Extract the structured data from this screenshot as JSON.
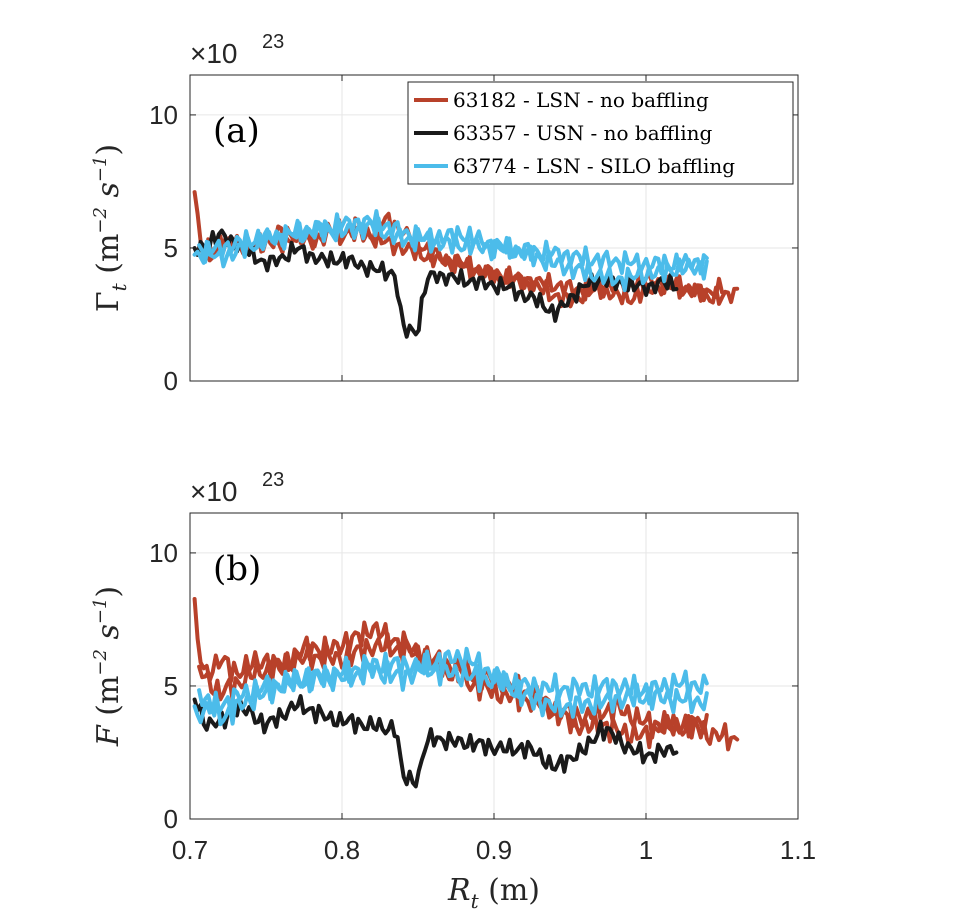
{
  "chart_data": [
    {
      "type": "line",
      "panel_label": "(a)",
      "multiplier": "×10",
      "multiplier_exp": "23",
      "ylabel": "Γt (m−2 s−1)",
      "ylabel_parts": {
        "sym": "Γ",
        "sub": "t",
        "rest": " (m",
        "exp1": "−2",
        "mid": " s",
        "exp2": "−1",
        "end": ")"
      },
      "xlim": [
        0.7,
        1.1
      ],
      "ylim": [
        0,
        11.5
      ],
      "yticks": [
        0,
        5,
        10
      ],
      "yticklabels": [
        "0",
        "5",
        "10"
      ],
      "grid": true,
      "legend_position": "top-right",
      "legend": [
        "63182 - LSN - no baffling",
        "63357 - USN - no baffling",
        "63774 - LSN - SILO baffling"
      ],
      "series": [
        {
          "name": "63182 - LSN - no baffling",
          "color": "#b8412a",
          "passes": [
            {
              "x": [
                0.703,
                0.706,
                0.71,
                0.72,
                0.73,
                0.74,
                0.75,
                0.76,
                0.77,
                0.78,
                0.79,
                0.8,
                0.81,
                0.82,
                0.83,
                0.84,
                0.85,
                0.86,
                0.87,
                0.88,
                0.89,
                0.9,
                0.91,
                0.92,
                0.93,
                0.94,
                0.95,
                0.96,
                0.97,
                0.98,
                0.99,
                1.0,
                1.01,
                1.02,
                1.03,
                1.04,
                1.05,
                1.06
              ],
              "y": [
                7.1,
                5.5,
                4.6,
                5.0,
                5.3,
                4.9,
                5.4,
                5.0,
                5.6,
                5.2,
                5.8,
                5.4,
                5.9,
                5.5,
                6.1,
                5.6,
                5.2,
                4.8,
                4.5,
                4.3,
                4.1,
                3.9,
                3.8,
                3.7,
                3.5,
                3.2,
                3.0,
                3.3,
                3.5,
                3.2,
                3.1,
                3.4,
                3.6,
                3.5,
                3.4,
                3.2,
                3.1,
                3.4
              ]
            },
            {
              "x": [
                0.706,
                0.72,
                0.74,
                0.76,
                0.78,
                0.8,
                0.82,
                0.84,
                0.86,
                0.88,
                0.9,
                0.92,
                0.94,
                0.96,
                0.98,
                1.0,
                1.02,
                1.04,
                1.05
              ],
              "y": [
                4.8,
                5.2,
                5.0,
                5.6,
                5.3,
                5.7,
                5.4,
                5.0,
                4.6,
                4.4,
                4.0,
                3.8,
                3.6,
                3.4,
                3.6,
                3.8,
                3.6,
                3.3,
                3.5
              ]
            }
          ],
          "amp": 0.45
        },
        {
          "name": "63357 - USN - no baffling",
          "color": "#1a1a1a",
          "passes": [
            {
              "x": [
                0.703,
                0.71,
                0.72,
                0.73,
                0.74,
                0.75,
                0.76,
                0.77,
                0.78,
                0.79,
                0.8,
                0.81,
                0.82,
                0.83,
                0.835,
                0.84,
                0.842,
                0.85,
                0.855,
                0.86,
                0.87,
                0.88,
                0.89,
                0.9,
                0.91,
                0.92,
                0.93,
                0.94,
                0.95,
                0.96,
                0.97,
                0.98,
                0.99,
                1.0,
                1.01,
                1.02
              ],
              "y": [
                4.9,
                5.1,
                5.5,
                5.2,
                4.8,
                4.4,
                4.6,
                5.0,
                4.7,
                4.5,
                4.6,
                4.4,
                4.2,
                4.1,
                4.0,
                2.0,
                1.9,
                1.9,
                3.7,
                4.0,
                3.9,
                3.8,
                3.7,
                3.6,
                3.5,
                3.2,
                3.0,
                2.5,
                3.1,
                3.6,
                3.8,
                3.7,
                3.6,
                3.5,
                3.7,
                3.6
              ]
            }
          ],
          "amp": 0.4
        },
        {
          "name": "63774 - LSN - SILO baffling",
          "color": "#4cbcea",
          "passes": [
            {
              "x": [
                0.703,
                0.72,
                0.74,
                0.76,
                0.78,
                0.8,
                0.82,
                0.84,
                0.86,
                0.88,
                0.9,
                0.92,
                0.94,
                0.96,
                0.98,
                1.0,
                1.02,
                1.04
              ],
              "y": [
                4.7,
                5.0,
                5.3,
                5.5,
                5.7,
                5.9,
                6.0,
                5.6,
                5.2,
                5.1,
                5.0,
                4.9,
                4.8,
                4.6,
                4.5,
                4.4,
                4.4,
                4.5
              ]
            },
            {
              "x": [
                0.706,
                0.72,
                0.74,
                0.76,
                0.78,
                0.8,
                0.82,
                0.84,
                0.86,
                0.88,
                0.9,
                0.92,
                0.94,
                0.96,
                0.98,
                1.0,
                1.02,
                1.04
              ],
              "y": [
                5.0,
                4.6,
                5.1,
                5.4,
                5.6,
                5.6,
                5.8,
                5.3,
                5.4,
                5.5,
                5.1,
                4.8,
                4.4,
                4.1,
                3.8,
                4.0,
                4.2,
                4.3
              ]
            }
          ],
          "amp": 0.5
        }
      ]
    },
    {
      "type": "line",
      "panel_label": "(b)",
      "multiplier": "×10",
      "multiplier_exp": "23",
      "ylabel": "F (m−2 s−1)",
      "ylabel_parts": {
        "sym": "F",
        "sub": "",
        "rest": " (m",
        "exp1": "−2",
        "mid": " s",
        "exp2": "−1",
        "end": ")"
      },
      "xlabel": "Rt (m)",
      "xlabel_parts": {
        "sym": "R",
        "sub": "t",
        "rest": " (m)"
      },
      "xlim": [
        0.7,
        1.1
      ],
      "xticks": [
        0.7,
        0.8,
        0.9,
        1.0,
        1.1
      ],
      "xticklabels": [
        "0.7",
        "0.8",
        "0.9",
        "1",
        "1.1"
      ],
      "ylim": [
        0,
        11.5
      ],
      "yticks": [
        0,
        5,
        10
      ],
      "yticklabels": [
        "0",
        "5",
        "10"
      ],
      "grid": true,
      "series": [
        {
          "name": "63182 - LSN - no baffling",
          "color": "#b8412a",
          "passes": [
            {
              "x": [
                0.703,
                0.706,
                0.71,
                0.72,
                0.73,
                0.74,
                0.75,
                0.76,
                0.77,
                0.78,
                0.79,
                0.8,
                0.81,
                0.82,
                0.83,
                0.84,
                0.85,
                0.86,
                0.87,
                0.88,
                0.89,
                0.9,
                0.91,
                0.92,
                0.93,
                0.94,
                0.95,
                0.96,
                0.97,
                0.98,
                0.99,
                1.0,
                1.01,
                1.02,
                1.03,
                1.04,
                1.05,
                1.06
              ],
              "y": [
                7.8,
                6.2,
                5.4,
                6.0,
                5.5,
                5.8,
                6.0,
                5.6,
                6.2,
                6.5,
                6.3,
                6.6,
                6.8,
                7.2,
                6.8,
                6.6,
                6.2,
                5.8,
                5.5,
                5.2,
                5.0,
                4.8,
                4.6,
                4.5,
                4.4,
                4.0,
                3.7,
                3.4,
                3.6,
                3.3,
                3.2,
                3.1,
                3.6,
                3.5,
                3.6,
                3.2,
                3.1,
                3.0
              ]
            },
            {
              "x": [
                0.706,
                0.72,
                0.74,
                0.76,
                0.78,
                0.8,
                0.82,
                0.84,
                0.86,
                0.88,
                0.9,
                0.92,
                0.94,
                0.96,
                0.98,
                1.0,
                1.02,
                1.04
              ],
              "y": [
                5.6,
                4.7,
                5.4,
                5.8,
                6.1,
                6.0,
                6.5,
                6.4,
                6.0,
                5.6,
                5.2,
                4.8,
                4.2,
                3.8,
                4.2,
                3.6,
                3.4,
                3.6
              ]
            }
          ],
          "amp": 0.6
        },
        {
          "name": "63357 - USN - no baffling",
          "color": "#1a1a1a",
          "passes": [
            {
              "x": [
                0.703,
                0.71,
                0.72,
                0.73,
                0.74,
                0.75,
                0.76,
                0.77,
                0.78,
                0.79,
                0.8,
                0.81,
                0.82,
                0.83,
                0.835,
                0.84,
                0.842,
                0.85,
                0.855,
                0.86,
                0.87,
                0.88,
                0.89,
                0.9,
                0.91,
                0.92,
                0.93,
                0.94,
                0.95,
                0.96,
                0.97,
                0.98,
                0.99,
                1.0,
                1.01,
                1.02
              ],
              "y": [
                4.5,
                3.6,
                3.6,
                4.2,
                4.0,
                3.5,
                3.9,
                4.3,
                4.1,
                3.8,
                3.7,
                3.6,
                3.5,
                3.4,
                3.5,
                1.6,
                1.5,
                1.5,
                2.8,
                3.1,
                2.9,
                2.9,
                2.8,
                2.7,
                2.6,
                2.7,
                2.4,
                1.9,
                2.3,
                2.6,
                3.4,
                3.1,
                2.6,
                2.4,
                2.5,
                2.7
              ]
            }
          ],
          "amp": 0.45
        },
        {
          "name": "63774 - LSN - SILO baffling",
          "color": "#4cbcea",
          "passes": [
            {
              "x": [
                0.703,
                0.72,
                0.74,
                0.76,
                0.78,
                0.8,
                0.82,
                0.84,
                0.86,
                0.88,
                0.9,
                0.92,
                0.94,
                0.96,
                0.98,
                1.0,
                1.02,
                1.04
              ],
              "y": [
                3.9,
                4.3,
                4.8,
                5.1,
                5.3,
                5.5,
                5.8,
                5.8,
                5.6,
                5.4,
                5.2,
                5.0,
                4.9,
                4.9,
                5.0,
                4.8,
                5.1,
                5.0
              ]
            },
            {
              "x": [
                0.706,
                0.72,
                0.74,
                0.76,
                0.78,
                0.8,
                0.82,
                0.84,
                0.86,
                0.88,
                0.9,
                0.92,
                0.94,
                0.96,
                0.98,
                1.0,
                1.02,
                1.04
              ],
              "y": [
                4.8,
                3.8,
                4.5,
                5.0,
                5.3,
                5.3,
                5.6,
                5.3,
                5.9,
                6.1,
                5.4,
                4.6,
                4.2,
                4.3,
                4.5,
                4.6,
                4.5,
                4.4
              ]
            }
          ],
          "amp": 0.6
        }
      ]
    }
  ]
}
